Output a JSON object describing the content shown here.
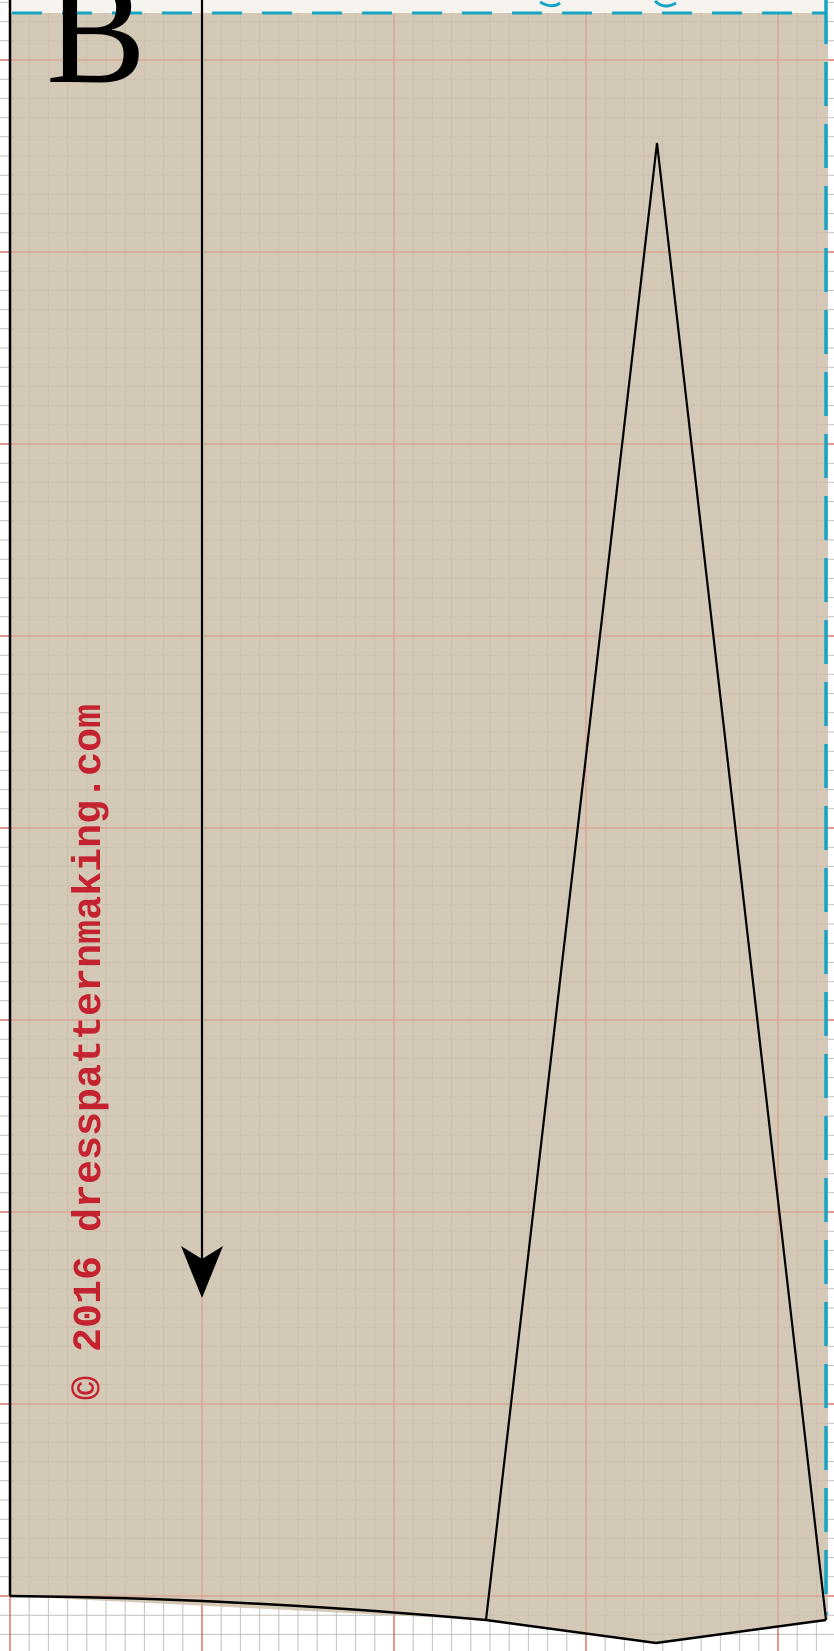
{
  "pattern": {
    "piece_letter": "B",
    "watermark": "© 2016  dresspatternmaking.com",
    "colors": {
      "page_background": "#ffffff",
      "fabric_fill": "#d4c9b6",
      "grid_minor": "#c9bfae",
      "grid_major": "#d9a08e",
      "outline": "#000000",
      "cut_line": "#17a5c3",
      "watermark": "#c4222e"
    },
    "grainline": "grainline-arrow",
    "dart": "dart-triangle"
  }
}
